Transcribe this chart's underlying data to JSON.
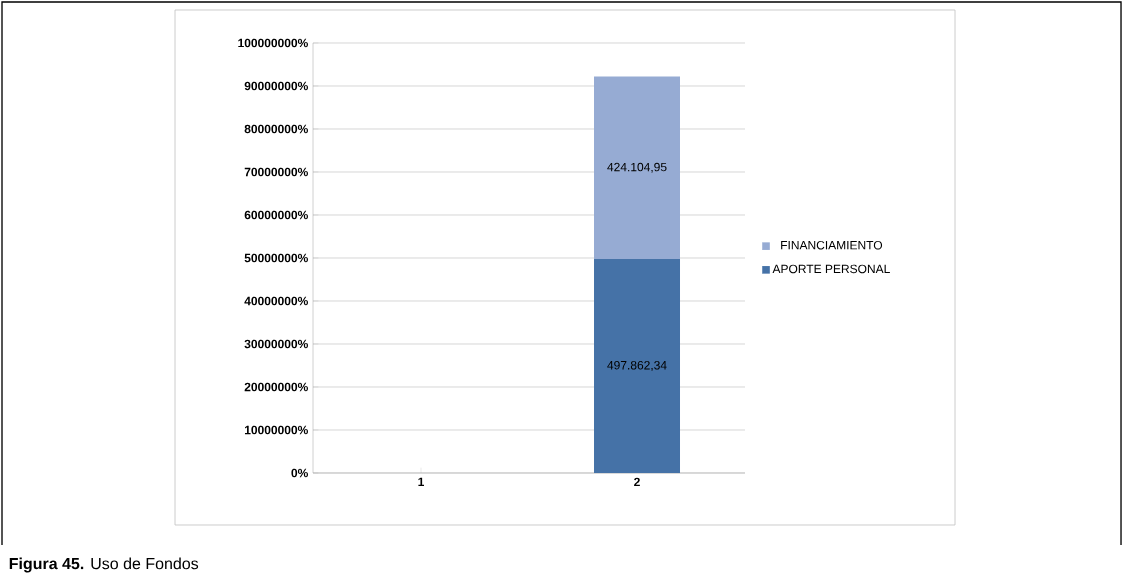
{
  "chart_data": {
    "type": "bar",
    "stacked": true,
    "categories": [
      "1",
      "2"
    ],
    "series": [
      {
        "name": "APORTE PERSONAL",
        "color": "#4572a7",
        "values": [
          null,
          497862.34
        ],
        "value_labels": [
          null,
          "497.862,34"
        ]
      },
      {
        "name": "FINANCIAMIENTO",
        "color": "#96abd3",
        "values": [
          null,
          424104.95
        ],
        "value_labels": [
          null,
          "424.104,95"
        ]
      }
    ],
    "ylim": [
      0,
      1000000
    ],
    "yticks": [
      {
        "value": 0,
        "label": "0%"
      },
      {
        "value": 100000,
        "label": "10000000%"
      },
      {
        "value": 200000,
        "label": "20000000%"
      },
      {
        "value": 300000,
        "label": "30000000%"
      },
      {
        "value": 400000,
        "label": "40000000%"
      },
      {
        "value": 500000,
        "label": "50000000%"
      },
      {
        "value": 600000,
        "label": "60000000%"
      },
      {
        "value": 700000,
        "label": "70000000%"
      },
      {
        "value": 800000,
        "label": "80000000%"
      },
      {
        "value": 900000,
        "label": "90000000%"
      },
      {
        "value": 1000000,
        "label": "100000000%"
      }
    ],
    "grid": "y",
    "legend": "right",
    "annotations": [
      "**Figura 45.** Uso de Fondos"
    ]
  }
}
